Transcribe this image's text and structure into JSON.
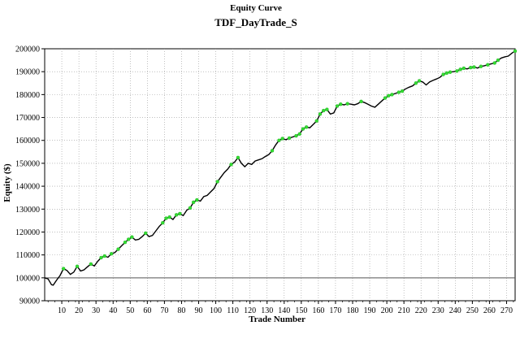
{
  "chart_data": {
    "type": "line",
    "title": "Equity Curve",
    "subtitle": "TDF_DayTrade_S",
    "xlabel": "Trade Number",
    "ylabel": "Equity ($)",
    "xlim": [
      0,
      275
    ],
    "ylim": [
      90000,
      200000
    ],
    "x_ticks": [
      10,
      20,
      30,
      40,
      50,
      60,
      70,
      80,
      90,
      100,
      110,
      120,
      130,
      140,
      150,
      160,
      170,
      180,
      190,
      200,
      210,
      220,
      230,
      240,
      250,
      260,
      270
    ],
    "y_ticks": [
      90000,
      100000,
      110000,
      120000,
      130000,
      140000,
      150000,
      160000,
      170000,
      180000,
      190000,
      200000
    ],
    "grid": true,
    "baseline": 100000,
    "colors": {
      "line": "#000000",
      "peak_marker": "#33dd33",
      "baseline": "#555555",
      "grid": "#999999"
    },
    "series": [
      {
        "values_xy": [
          [
            0,
            100000
          ],
          [
            2,
            99500
          ],
          [
            4,
            97000
          ],
          [
            5,
            96800
          ],
          [
            7,
            99000
          ],
          [
            9,
            101000
          ],
          [
            11,
            104000
          ],
          [
            13,
            103200
          ],
          [
            15,
            101500
          ],
          [
            17,
            102500
          ],
          [
            19,
            105000
          ],
          [
            21,
            103000
          ],
          [
            23,
            103500
          ],
          [
            25,
            104800
          ],
          [
            27,
            106000
          ],
          [
            29,
            105200
          ],
          [
            31,
            107200
          ],
          [
            33,
            108800
          ],
          [
            35,
            109500
          ],
          [
            37,
            109000
          ],
          [
            39,
            110500
          ],
          [
            41,
            111000
          ],
          [
            43,
            112500
          ],
          [
            45,
            114000
          ],
          [
            47,
            115500
          ],
          [
            49,
            116800
          ],
          [
            51,
            117800
          ],
          [
            53,
            116500
          ],
          [
            55,
            116800
          ],
          [
            57,
            118000
          ],
          [
            59,
            119500
          ],
          [
            61,
            118000
          ],
          [
            63,
            118500
          ],
          [
            65,
            120500
          ],
          [
            67,
            122500
          ],
          [
            69,
            124000
          ],
          [
            71,
            126000
          ],
          [
            73,
            126500
          ],
          [
            75,
            125500
          ],
          [
            77,
            127500
          ],
          [
            79,
            128000
          ],
          [
            81,
            127200
          ],
          [
            83,
            129500
          ],
          [
            85,
            130500
          ],
          [
            87,
            133000
          ],
          [
            89,
            134000
          ],
          [
            91,
            133500
          ],
          [
            93,
            135500
          ],
          [
            95,
            136000
          ],
          [
            97,
            137500
          ],
          [
            99,
            139000
          ],
          [
            101,
            142000
          ],
          [
            103,
            144000
          ],
          [
            105,
            146000
          ],
          [
            107,
            147500
          ],
          [
            109,
            149500
          ],
          [
            111,
            150500
          ],
          [
            113,
            152500
          ],
          [
            115,
            150000
          ],
          [
            117,
            148500
          ],
          [
            119,
            150000
          ],
          [
            121,
            149500
          ],
          [
            123,
            151000
          ],
          [
            125,
            151500
          ],
          [
            127,
            152000
          ],
          [
            129,
            153000
          ],
          [
            131,
            153800
          ],
          [
            133,
            155500
          ],
          [
            135,
            158000
          ],
          [
            137,
            160000
          ],
          [
            139,
            160800
          ],
          [
            141,
            160300
          ],
          [
            143,
            161000
          ],
          [
            145,
            161500
          ],
          [
            147,
            162000
          ],
          [
            149,
            162800
          ],
          [
            151,
            165000
          ],
          [
            153,
            165800
          ],
          [
            155,
            165500
          ],
          [
            157,
            167000
          ],
          [
            159,
            168500
          ],
          [
            161,
            171500
          ],
          [
            163,
            173000
          ],
          [
            165,
            173500
          ],
          [
            167,
            171500
          ],
          [
            169,
            172000
          ],
          [
            171,
            175000
          ],
          [
            173,
            175800
          ],
          [
            175,
            175500
          ],
          [
            177,
            176000
          ],
          [
            179,
            175800
          ],
          [
            181,
            175500
          ],
          [
            183,
            176000
          ],
          [
            185,
            177000
          ],
          [
            187,
            176500
          ],
          [
            189,
            175800
          ],
          [
            191,
            175000
          ],
          [
            193,
            174500
          ],
          [
            195,
            175800
          ],
          [
            197,
            177200
          ],
          [
            199,
            178500
          ],
          [
            201,
            179500
          ],
          [
            203,
            180000
          ],
          [
            205,
            180500
          ],
          [
            207,
            181000
          ],
          [
            209,
            181500
          ],
          [
            211,
            182500
          ],
          [
            213,
            183200
          ],
          [
            215,
            183800
          ],
          [
            217,
            185000
          ],
          [
            219,
            186000
          ],
          [
            221,
            185500
          ],
          [
            223,
            184200
          ],
          [
            225,
            185500
          ],
          [
            227,
            186200
          ],
          [
            229,
            186800
          ],
          [
            231,
            187500
          ],
          [
            233,
            188800
          ],
          [
            235,
            189400
          ],
          [
            237,
            189800
          ],
          [
            239,
            190000
          ],
          [
            241,
            190300
          ],
          [
            243,
            191000
          ],
          [
            245,
            191500
          ],
          [
            247,
            191200
          ],
          [
            249,
            191800
          ],
          [
            251,
            192000
          ],
          [
            253,
            191600
          ],
          [
            255,
            192300
          ],
          [
            257,
            192600
          ],
          [
            259,
            193000
          ],
          [
            261,
            193400
          ],
          [
            263,
            193800
          ],
          [
            265,
            195000
          ],
          [
            267,
            196000
          ],
          [
            269,
            196500
          ],
          [
            271,
            196800
          ],
          [
            273,
            198000
          ],
          [
            275,
            199000
          ]
        ],
        "peaks_xy": [
          [
            11,
            104000
          ],
          [
            19,
            105000
          ],
          [
            27,
            106000
          ],
          [
            33,
            108800
          ],
          [
            35,
            109500
          ],
          [
            39,
            110500
          ],
          [
            43,
            112500
          ],
          [
            47,
            115500
          ],
          [
            49,
            116800
          ],
          [
            51,
            117800
          ],
          [
            59,
            119500
          ],
          [
            69,
            124000
          ],
          [
            71,
            126000
          ],
          [
            73,
            126500
          ],
          [
            77,
            127500
          ],
          [
            79,
            128000
          ],
          [
            85,
            130500
          ],
          [
            87,
            133000
          ],
          [
            89,
            134000
          ],
          [
            101,
            142000
          ],
          [
            109,
            149500
          ],
          [
            113,
            152500
          ],
          [
            133,
            155500
          ],
          [
            137,
            160000
          ],
          [
            139,
            160800
          ],
          [
            143,
            161000
          ],
          [
            147,
            162000
          ],
          [
            149,
            162800
          ],
          [
            151,
            165000
          ],
          [
            153,
            165800
          ],
          [
            159,
            168500
          ],
          [
            161,
            171500
          ],
          [
            163,
            173000
          ],
          [
            165,
            173500
          ],
          [
            171,
            175000
          ],
          [
            173,
            175800
          ],
          [
            177,
            176000
          ],
          [
            185,
            177000
          ],
          [
            199,
            178500
          ],
          [
            201,
            179500
          ],
          [
            203,
            180000
          ],
          [
            207,
            181000
          ],
          [
            209,
            181500
          ],
          [
            217,
            185000
          ],
          [
            219,
            186000
          ],
          [
            233,
            188800
          ],
          [
            235,
            189400
          ],
          [
            237,
            189800
          ],
          [
            241,
            190300
          ],
          [
            243,
            191000
          ],
          [
            245,
            191500
          ],
          [
            249,
            191800
          ],
          [
            251,
            192000
          ],
          [
            255,
            192300
          ],
          [
            259,
            193000
          ],
          [
            263,
            193800
          ],
          [
            265,
            195000
          ],
          [
            275,
            199000
          ]
        ]
      }
    ]
  }
}
